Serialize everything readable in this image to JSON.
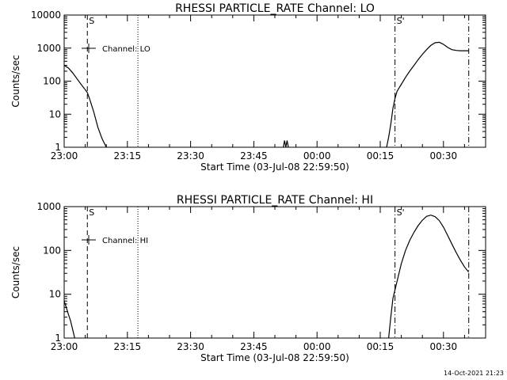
{
  "chart_data": [
    {
      "type": "line",
      "title": "RHESSI PARTICLE_RATE Channel: LO",
      "xlabel": "Start Time (03-Jul-08 22:59:50)",
      "ylabel": "Counts/sec",
      "yscale": "log",
      "xlim_minutes": [
        0,
        100
      ],
      "ylim": [
        1,
        10000
      ],
      "x_ticks": [
        {
          "t": 0,
          "label": "23:00"
        },
        {
          "t": 15,
          "label": "23:15"
        },
        {
          "t": 30,
          "label": "23:30"
        },
        {
          "t": 45,
          "label": "23:45"
        },
        {
          "t": 60,
          "label": "00:00"
        },
        {
          "t": 75,
          "label": "00:15"
        },
        {
          "t": 90,
          "label": "00:30"
        }
      ],
      "y_ticks": [
        {
          "v": 1,
          "label": "1"
        },
        {
          "v": 10,
          "label": "10"
        },
        {
          "v": 100,
          "label": "100"
        },
        {
          "v": 1000,
          "label": "1000"
        },
        {
          "v": 10000,
          "label": "10000"
        }
      ],
      "legend": {
        "placement": "top-left",
        "label": "Channel: LO"
      },
      "markers": [
        {
          "t": 5.5,
          "style": "dashed",
          "label": "S"
        },
        {
          "t": 17.5,
          "style": "dotted",
          "label": ""
        },
        {
          "t": 78.5,
          "style": "dashdot",
          "label": "S'"
        },
        {
          "t": 96,
          "style": "dashdot",
          "label": ""
        }
      ],
      "series": [
        {
          "x": [
            0,
            1,
            2,
            3,
            4,
            5,
            5.5,
            6,
            7,
            8,
            9,
            10
          ],
          "y": [
            300,
            250,
            180,
            120,
            80,
            55,
            45,
            30,
            12,
            4,
            1.8,
            1
          ]
        },
        {
          "x": [
            52,
            52.3,
            52.6,
            52.9,
            53.2
          ],
          "y": [
            1,
            1.6,
            1,
            1.6,
            1
          ]
        },
        {
          "x": [
            76.5,
            77,
            77.5,
            78,
            78.5,
            79,
            80,
            81,
            82,
            83,
            84,
            85,
            86,
            87,
            88,
            89,
            90,
            91,
            92,
            93,
            94,
            95,
            96
          ],
          "y": [
            1,
            2,
            5,
            15,
            30,
            50,
            80,
            130,
            200,
            300,
            450,
            650,
            900,
            1200,
            1450,
            1500,
            1300,
            1050,
            900,
            850,
            830,
            830,
            830
          ]
        }
      ]
    },
    {
      "type": "line",
      "title": "RHESSI PARTICLE_RATE Channel: HI",
      "xlabel": "Start Time (03-Jul-08 22:59:50)",
      "ylabel": "Counts/sec",
      "yscale": "log",
      "xlim_minutes": [
        0,
        100
      ],
      "ylim": [
        1,
        1000
      ],
      "x_ticks": [
        {
          "t": 0,
          "label": "23:00"
        },
        {
          "t": 15,
          "label": "23:15"
        },
        {
          "t": 30,
          "label": "23:30"
        },
        {
          "t": 45,
          "label": "23:45"
        },
        {
          "t": 60,
          "label": "00:00"
        },
        {
          "t": 75,
          "label": "00:15"
        },
        {
          "t": 90,
          "label": "00:30"
        }
      ],
      "y_ticks": [
        {
          "v": 1,
          "label": "1"
        },
        {
          "v": 10,
          "label": "10"
        },
        {
          "v": 100,
          "label": "100"
        },
        {
          "v": 1000,
          "label": "1000"
        }
      ],
      "legend": {
        "placement": "top-left",
        "label": "Channel: HI"
      },
      "markers": [
        {
          "t": 5.5,
          "style": "dashed",
          "label": "S"
        },
        {
          "t": 17.5,
          "style": "dotted",
          "label": ""
        },
        {
          "t": 78.5,
          "style": "dashdot",
          "label": "S'"
        },
        {
          "t": 96,
          "style": "dashdot",
          "label": ""
        }
      ],
      "series": [
        {
          "x": [
            0,
            0.5,
            1,
            1.5,
            2,
            2.5
          ],
          "y": [
            7,
            5,
            3.5,
            2.5,
            1.6,
            1
          ]
        },
        {
          "x": [
            77,
            77.5,
            78,
            79,
            80,
            81,
            82,
            83,
            84,
            85,
            86,
            87,
            88,
            89,
            90,
            91,
            92,
            93,
            94,
            95,
            96
          ],
          "y": [
            1,
            3,
            8,
            20,
            50,
            100,
            170,
            260,
            370,
            490,
            600,
            640,
            590,
            480,
            340,
            220,
            140,
            90,
            60,
            42,
            32
          ]
        }
      ]
    }
  ],
  "timestamp": "14-Oct-2021 21:23"
}
